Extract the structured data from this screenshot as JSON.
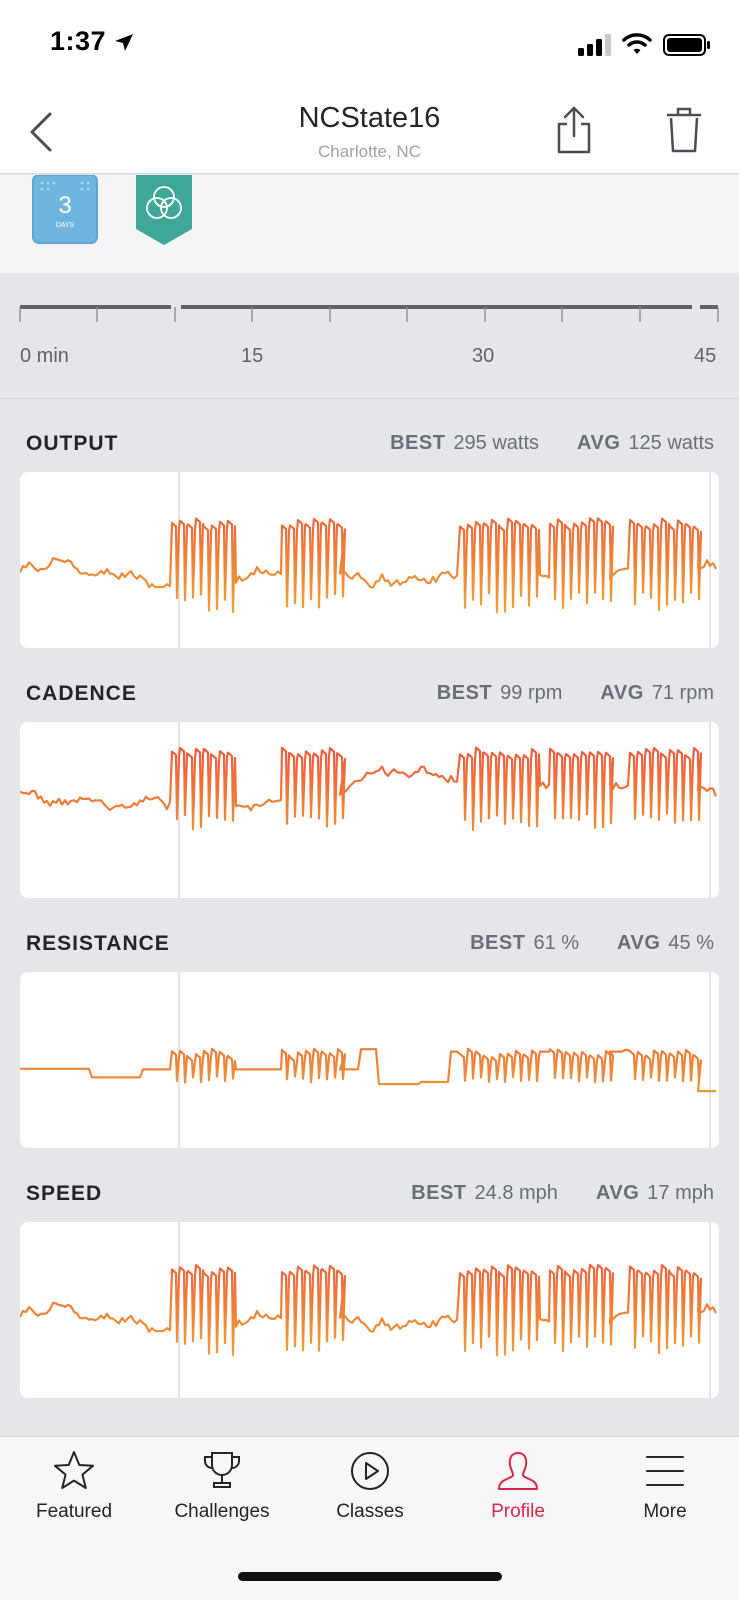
{
  "status_bar": {
    "time": "1:37"
  },
  "header": {
    "title": "NCState16",
    "subtitle": "Charlotte, NC",
    "icons": [
      "chevron-left-icon",
      "share-icon",
      "trash-icon"
    ]
  },
  "badges": [
    {
      "name": "streak-badge",
      "text": "3",
      "subtext": "DAYS",
      "color": "#6fb6df"
    },
    {
      "name": "rings-badge",
      "color": "#3fa797"
    }
  ],
  "timeline": {
    "labels": [
      "0 min",
      "15",
      "30",
      "45"
    ]
  },
  "colors": {
    "accent": "#d8274a",
    "line_top": "#ee4b3e",
    "line_bottom": "#eeb834"
  },
  "metrics": [
    {
      "title": "OUTPUT",
      "best_label": "BEST",
      "best": "295 watts",
      "avg_label": "AVG",
      "avg": "125 watts"
    },
    {
      "title": "CADENCE",
      "best_label": "BEST",
      "best": "99 rpm",
      "avg_label": "AVG",
      "avg": "71 rpm"
    },
    {
      "title": "RESISTANCE",
      "best_label": "BEST",
      "best": "61 %",
      "avg_label": "AVG",
      "avg": "45 %"
    },
    {
      "title": "SPEED",
      "best_label": "BEST",
      "best": "24.8 mph",
      "avg_label": "AVG",
      "avg": "17 mph"
    }
  ],
  "tabs": [
    {
      "label": "Featured",
      "icon": "star-icon",
      "active": false
    },
    {
      "label": "Challenges",
      "icon": "trophy-icon",
      "active": false
    },
    {
      "label": "Classes",
      "icon": "play-circle-icon",
      "active": false
    },
    {
      "label": "Profile",
      "icon": "profile-icon",
      "active": true
    },
    {
      "label": "More",
      "icon": "menu-icon",
      "active": false
    }
  ]
}
